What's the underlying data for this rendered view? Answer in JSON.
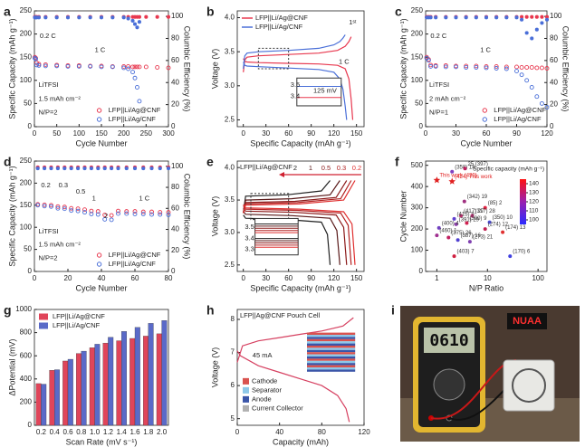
{
  "chart_data": [
    {
      "panel": "a",
      "type": "scatter",
      "xlabel": "Cycle Number",
      "ylabel": "Specific Capacity (mAh g⁻¹)",
      "y2label": "Columbic Efficiency (%)",
      "xlim": [
        0,
        300
      ],
      "xticks": [
        0,
        50,
        100,
        150,
        200,
        250,
        300
      ],
      "ylim": [
        0,
        250
      ],
      "yticks": [
        0,
        50,
        100,
        150,
        200,
        250
      ],
      "y2lim": [
        0,
        105
      ],
      "y2ticks": [
        0,
        20,
        40,
        60,
        80,
        100
      ],
      "legend": "lower right",
      "x": [
        1,
        3,
        5,
        10,
        25,
        50,
        75,
        100,
        125,
        150,
        175,
        200,
        210,
        220,
        225,
        230,
        235,
        250,
        275,
        300
      ],
      "series": [
        {
          "name": "LFP||Li/Ag@CNF",
          "color": "#e8384f",
          "values": [
            150,
            148,
            138,
            135,
            134,
            133,
            132,
            132,
            131,
            131,
            130,
            130,
            130,
            129,
            129,
            129,
            129,
            129,
            128,
            127
          ]
        },
        {
          "name": "LFP||Li/Ag/CNF",
          "color": "#4a6fd8",
          "values": [
            148,
            146,
            133,
            132,
            131,
            131,
            130,
            130,
            130,
            129,
            129,
            127,
            125,
            118,
            105,
            85,
            55,
            null,
            null,
            null
          ]
        }
      ],
      "y2_series": [
        {
          "color": "#e8384f",
          "axis": "y2",
          "values": [
            99.5,
            99.5,
            99.5,
            99.5,
            99.5,
            99.5,
            99.5,
            99.5,
            99.5,
            99.5,
            99.5,
            99.5,
            99.5,
            99.5,
            99.5,
            99.5,
            99.5,
            99.5,
            99.5,
            99.5
          ]
        },
        {
          "color": "#4a6fd8",
          "axis": "y2",
          "values": [
            99,
            99,
            99,
            99,
            99,
            99,
            99,
            99,
            99,
            99,
            99,
            99,
            98,
            96,
            93,
            90,
            95,
            null,
            null,
            null
          ]
        }
      ],
      "annotations": [
        "0.2 C",
        "1 C",
        "LiTFSI",
        "1.5 mAh cm⁻²",
        "N/P=2"
      ]
    },
    {
      "panel": "b",
      "type": "line",
      "xlabel": "Specific Capacity (mAh g⁻¹)",
      "ylabel": "Voltage (V)",
      "xlim": [
        -8,
        160
      ],
      "xticks": [
        0,
        30,
        60,
        90,
        120,
        150
      ],
      "ylim": [
        2.4,
        4.1
      ],
      "yticks": [
        2.5,
        {
          "value": 3,
          "label": "3.0"
        },
        3.5,
        {
          "value": 4,
          "label": "4.0"
        }
      ],
      "legend": "upper left",
      "series": [
        {
          "name": "LFP||Li/Ag@CNF",
          "color": "#e8384f",
          "x": [
            0,
            2,
            5,
            20,
            60,
            100,
            125,
            135,
            140,
            143,
            143,
            0,
            2,
            5,
            20,
            60,
            100,
            125,
            135,
            140,
            143,
            145
          ],
          "values": [
            3.2,
            3.38,
            3.42,
            3.44,
            3.46,
            3.48,
            3.52,
            3.58,
            3.65,
            3.72,
            null,
            3.4,
            3.36,
            3.35,
            3.34,
            3.33,
            3.32,
            3.3,
            3.25,
            3.1,
            2.8,
            2.5
          ]
        },
        {
          "name": "LFP||Li/Ag/CNF",
          "color": "#4a6fd8",
          "x": [
            0,
            2,
            5,
            20,
            60,
            100,
            120,
            128,
            132,
            135,
            135,
            0,
            2,
            5,
            20,
            60,
            100,
            120,
            128,
            132,
            135,
            137
          ],
          "values": [
            3.25,
            3.44,
            3.48,
            3.5,
            3.52,
            3.55,
            3.6,
            3.65,
            3.7,
            3.75,
            null,
            3.35,
            3.3,
            3.29,
            3.28,
            3.26,
            3.24,
            3.2,
            3.1,
            2.95,
            2.7,
            2.5
          ]
        }
      ],
      "annotations": [
        "1ˢᵗ",
        "1 C",
        "3.5",
        "3.4",
        "125 mV"
      ]
    },
    {
      "panel": "c",
      "type": "scatter",
      "xlabel": "Cycle Number",
      "ylabel": "Specific Capacity (mAh g⁻¹)",
      "y2label": "Columbic Efficiency (%)",
      "xlim": [
        0,
        120
      ],
      "xticks": [
        0,
        30,
        60,
        90,
        120
      ],
      "ylim": [
        0,
        250
      ],
      "yticks": [
        0,
        50,
        100,
        150,
        200,
        250
      ],
      "y2lim": [
        0,
        105
      ],
      "y2ticks": [
        0,
        20,
        40,
        60,
        80,
        100
      ],
      "legend": "lower right",
      "x": [
        1,
        3,
        5,
        10,
        20,
        30,
        40,
        50,
        60,
        70,
        80,
        90,
        95,
        100,
        105,
        110,
        115,
        120
      ],
      "series": [
        {
          "name": "LFP||Li/Ag@CNF",
          "color": "#e8384f",
          "values": [
            150,
            145,
            133,
            132,
            132,
            131,
            131,
            131,
            130,
            130,
            129,
            129,
            128,
            128,
            128,
            127,
            127,
            126
          ]
        },
        {
          "name": "LFP||Li/Ag/CNF",
          "color": "#4a6fd8",
          "values": [
            148,
            143,
            130,
            130,
            129,
            129,
            128,
            128,
            127,
            126,
            125,
            120,
            112,
            100,
            85,
            65,
            50,
            42
          ]
        }
      ],
      "y2_series": [
        {
          "color": "#e8384f",
          "axis": "y2",
          "values": [
            99.5,
            99.5,
            99.5,
            99.5,
            99.5,
            99.5,
            99.5,
            99.5,
            99.5,
            99.5,
            99.5,
            99.5,
            99.5,
            99.5,
            99.5,
            99.5,
            99.5,
            99.5
          ]
        },
        {
          "color": "#4a6fd8",
          "axis": "y2",
          "values": [
            99,
            99,
            99,
            99,
            99,
            99,
            99,
            99,
            99,
            99,
            99,
            99,
            97,
            85,
            80,
            88,
            94,
            97
          ]
        }
      ],
      "annotations": [
        "0.2 C",
        "1 C",
        "LiTFSI",
        "2 mAh cm⁻²",
        "N/P=1"
      ]
    },
    {
      "panel": "d",
      "type": "scatter",
      "xlabel": "Cycle Number",
      "ylabel": "Specific Capacity (mAh g⁻¹)",
      "y2label": "Columbic Efficiency (%)",
      "xlim": [
        0,
        80
      ],
      "xticks": [
        0,
        20,
        40,
        60,
        80
      ],
      "ylim": [
        0,
        250
      ],
      "yticks": [
        0,
        50,
        100,
        150,
        200,
        250
      ],
      "y2lim": [
        0,
        105
      ],
      "y2ticks": [
        0,
        20,
        40,
        60,
        80,
        100
      ],
      "legend": "lower right",
      "x": [
        2,
        6,
        10,
        14,
        18,
        22,
        26,
        30,
        34,
        38,
        42,
        46,
        50,
        55,
        60,
        65,
        70,
        75,
        80
      ],
      "series": [
        {
          "name": "LFP||Li/Ag@CNF",
          "color": "#e8384f",
          "values": [
            152,
            151,
            150,
            147,
            146,
            143,
            142,
            140,
            137,
            136,
            128,
            127,
            137,
            136,
            136,
            135,
            135,
            134,
            134
          ]
        },
        {
          "name": "LFP||Li/Ag/CNF",
          "color": "#4a6fd8",
          "values": [
            150,
            148,
            147,
            143,
            142,
            138,
            137,
            134,
            130,
            129,
            118,
            117,
            131,
            131,
            130,
            130,
            129,
            129,
            128
          ]
        }
      ],
      "y2_series": [
        {
          "color": "#e8384f",
          "axis": "y2",
          "values": [
            99,
            99,
            99,
            99,
            99,
            99,
            99,
            99,
            99,
            99,
            99,
            99,
            99,
            99,
            99,
            99,
            99,
            99,
            99
          ]
        },
        {
          "color": "#4a6fd8",
          "axis": "y2",
          "values": [
            98,
            98,
            98,
            98,
            98,
            98,
            98,
            98,
            98,
            98,
            98,
            98,
            98,
            98,
            98,
            98,
            98,
            98,
            98
          ]
        }
      ],
      "annotations": [
        "0.2",
        "0.3",
        "0.5",
        "1",
        "2",
        "1 C",
        "LiTFSI",
        "1.5 mAh cm⁻²",
        "N/P=2"
      ]
    },
    {
      "panel": "e",
      "type": "line",
      "title": "LFP||Li/Ag@CNF",
      "xlabel": "Specific Capacity (mAh g⁻¹)",
      "ylabel": "Voltage (V)",
      "xlim": [
        -8,
        160
      ],
      "xticks": [
        0,
        30,
        60,
        90,
        120,
        150
      ],
      "ylim": [
        2.4,
        4.1
      ],
      "yticks": [
        2.5,
        {
          "value": 3,
          "label": "3.0"
        },
        3.5,
        {
          "value": 4,
          "label": "4.0"
        }
      ],
      "legend": "top-row",
      "series": [
        {
          "name": "2",
          "color": "#222222",
          "x": [
            0,
            3,
            57.5,
            103.5,
            115,
            115,
            0,
            3,
            57.5,
            103.5,
            111.5,
            115
          ],
          "values": [
            3.3,
            3.56,
            3.58,
            3.64,
            3.8,
            null,
            3.27,
            3.22,
            3.2,
            3.16,
            2.97,
            2.5
          ]
        },
        {
          "name": "1",
          "color": "#5a1a1a",
          "x": [
            0,
            3,
            64,
            115,
            128,
            128,
            0,
            3,
            64,
            115,
            124,
            128
          ],
          "values": [
            3.3,
            3.5,
            3.52,
            3.58,
            3.8,
            null,
            3.33,
            3.28,
            3.26,
            3.22,
            3.03,
            2.5
          ]
        },
        {
          "name": "0.5",
          "color": "#8b1a1a",
          "x": [
            0,
            3,
            68.5,
            123,
            137,
            137,
            0,
            3,
            68.5,
            123,
            133,
            137
          ],
          "values": [
            3.3,
            3.46,
            3.48,
            3.54,
            3.8,
            null,
            3.38,
            3.33,
            3.31,
            3.27,
            3.08,
            2.5
          ]
        },
        {
          "name": "0.3",
          "color": "#b22222",
          "x": [
            0,
            3,
            71.5,
            129,
            143,
            143,
            0,
            3,
            71.5,
            129,
            139,
            143
          ],
          "values": [
            3.3,
            3.44,
            3.46,
            3.52,
            3.8,
            null,
            3.41,
            3.36,
            3.34,
            3.3,
            3.11,
            2.5
          ]
        },
        {
          "name": "0.2",
          "color": "#e03030",
          "x": [
            0,
            3,
            74,
            133,
            148,
            148,
            0,
            3,
            74,
            133,
            144,
            148
          ],
          "values": [
            3.3,
            3.42,
            3.44,
            3.5,
            3.8,
            null,
            3.43,
            3.38,
            3.36,
            3.32,
            3.13,
            2.5
          ]
        }
      ],
      "annotations": [
        "3.5",
        "3.4",
        "3.3"
      ]
    },
    {
      "panel": "f",
      "type": "points",
      "xlabel": "N/P Ratio",
      "ylabel": "Cycle Number",
      "xlog": true,
      "xlim": [
        0.6,
        150
      ],
      "xticks": [
        1,
        10,
        100
      ],
      "ylim": [
        0,
        520
      ],
      "yticks": [
        0,
        100,
        200,
        300,
        400,
        500
      ],
      "colorbar": {
        "label": "Specific capacity (mAh g⁻¹)",
        "lim": [
          95,
          145
        ],
        "ticks": [
          100,
          110,
          120,
          130,
          140
        ],
        "colors": [
          "#2a2aff",
          "#9a20b0",
          "#ff1010"
        ]
      },
      "series": [
        {
          "marker": "star",
          "color": "#e02020",
          "x": [
            2.0,
            1.0
          ],
          "values": [
            424,
            430
          ],
          "labels": [
            "(424) This work",
            "This work (430)"
          ]
        },
        {
          "marker": "circle",
          "x": [
            2.0,
            3.6,
            3.5,
            9,
            3.0,
            2.2,
            5,
            2.4,
            3.9,
            11,
            9,
            1.1,
            1.0,
            1.7,
            2.6,
            4.5,
            20,
            2.2,
            28
          ],
          "values": [
            470,
            485,
            330,
            300,
            262,
            248,
            262,
            222,
            228,
            232,
            200,
            205,
            170,
            160,
            148,
            140,
            185,
            72,
            72
          ],
          "labels": [
            "(358) 18",
            "25 (397)",
            "(342) 19",
            "(85) 2",
            "(417) 27",
            "(415) 8",
            "(317) 28",
            "(391) 29",
            "(300) 9",
            "(350) 10",
            "(274) 12",
            "(400) 4",
            "(460) 1",
            "(375) 26",
            "(387) 16",
            "(273) 21",
            "(174) 13",
            "(403) 7",
            "(170) 6"
          ],
          "colors": [
            "#8040c0",
            "#c02060",
            "#a03080",
            "#e02040",
            "#c03070",
            "#6040d0",
            "#b03070",
            "#9040b0",
            "#d02050",
            "#5050e0",
            "#c02050",
            "#7040c0",
            "#a03090",
            "#c02060",
            "#5040d0",
            "#8040b0",
            "#e03030",
            "#d02040",
            "#4040e0"
          ]
        }
      ]
    },
    {
      "panel": "g",
      "type": "bar",
      "xlabel": "Scan Rate (mV s⁻¹)",
      "ylabel": "ΔPotential (mV)",
      "categories": [
        "0.2",
        "0.4",
        "0.6",
        "0.8",
        "1.0",
        "1.2",
        "1.4",
        "1.6",
        "1.8",
        "2.0"
      ],
      "ylim": [
        0,
        1000
      ],
      "yticks": [
        0,
        200,
        400,
        600,
        800,
        1000
      ],
      "legend": "upper left",
      "series": [
        {
          "name": "LFP||Li/Ag@CNF",
          "color": "#e0455a",
          "values": [
            360,
            475,
            555,
            620,
            670,
            710,
            730,
            750,
            770,
            790
          ]
        },
        {
          "name": "LFP||Li/Ag/CNF",
          "color": "#5a6ac8",
          "values": [
            355,
            480,
            570,
            640,
            700,
            760,
            810,
            845,
            880,
            905
          ]
        }
      ]
    },
    {
      "panel": "h",
      "type": "line",
      "title": "LFP||Ag@CNF Pouch Cell",
      "xlabel": "Capacity (mAh)",
      "ylabel": "Voltage (V)",
      "xlim": [
        0,
        120
      ],
      "xticks": [
        0,
        40,
        80,
        120
      ],
      "ylim": [
        4.8,
        8.3
      ],
      "yticks": [
        5,
        6,
        7,
        8
      ],
      "series": [
        {
          "color": "#d64060",
          "x": [
            0,
            5,
            20,
            40,
            60,
            80,
            100,
            110,
            110,
            0,
            3,
            20,
            40,
            60,
            80,
            95,
            103,
            106
          ],
          "values": [
            6.7,
            7.2,
            7.35,
            7.45,
            7.55,
            7.65,
            7.8,
            8.05,
            null,
            7.05,
            6.9,
            6.6,
            6.4,
            6.2,
            6.0,
            5.7,
            5.3,
            4.9
          ]
        }
      ],
      "annotations": [
        "45 mA"
      ],
      "inset_legend": [
        {
          "name": "Cathode",
          "color": "#d9534f"
        },
        {
          "name": "Separator",
          "color": "#8ec8e8"
        },
        {
          "name": "Anode",
          "color": "#3a55a8"
        },
        {
          "name": "Current Collector",
          "color": "#b0b0b0"
        }
      ]
    }
  ],
  "photo": {
    "panel": "i",
    "display": "0610",
    "sign": "NUAA"
  }
}
